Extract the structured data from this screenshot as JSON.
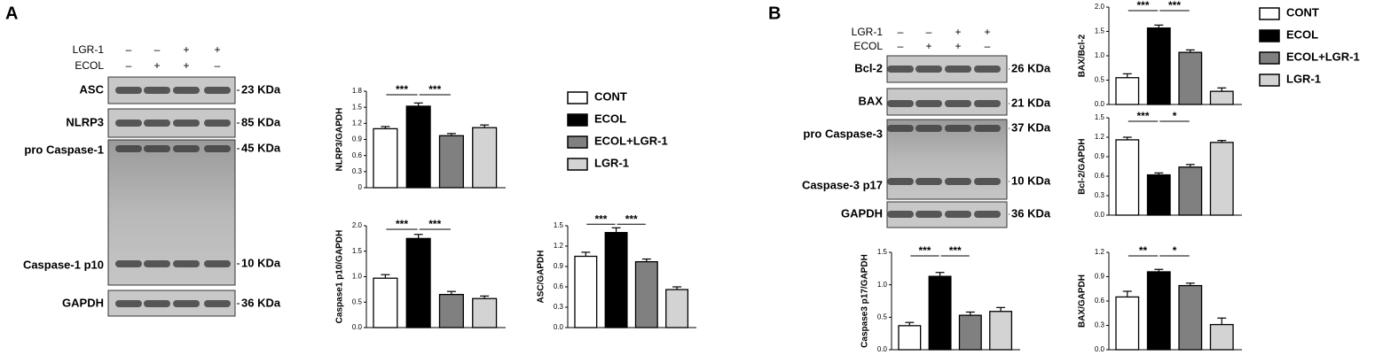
{
  "panels": [
    {
      "label": "A",
      "rows": [
        {
          "label": "LGR-1",
          "signs": [
            "–",
            "–",
            "+",
            "+"
          ]
        },
        {
          "label": "ECOL",
          "signs": [
            "–",
            "+",
            "+",
            "–"
          ]
        }
      ],
      "bands": [
        {
          "label": "ASC",
          "size": "23 KDa"
        },
        {
          "label": "NLRP3",
          "size": "85 KDa"
        },
        {
          "label": "pro Caspase-1",
          "size": "45 KDa"
        },
        {
          "label": "Caspase-1 p10",
          "size": "10 KDa"
        },
        {
          "label": "GAPDH",
          "size": "36 KDa"
        }
      ],
      "legend": [
        {
          "name": "CONT",
          "color": "#ffffff"
        },
        {
          "name": "ECOL",
          "color": "#000000"
        },
        {
          "name": "ECOL+LGR-1",
          "color": "#808080"
        },
        {
          "name": "LGR-1",
          "color": "#d3d3d3"
        }
      ]
    },
    {
      "label": "B",
      "rows": [
        {
          "label": "LGR-1",
          "signs": [
            "–",
            "–",
            "+",
            "+"
          ]
        },
        {
          "label": "ECOL",
          "signs": [
            "–",
            "+",
            "+",
            "–"
          ]
        }
      ],
      "bands": [
        {
          "label": "Bcl-2",
          "size": "26 KDa"
        },
        {
          "label": "BAX",
          "size": "21 KDa"
        },
        {
          "label": "pro Caspase-3",
          "size": "37 KDa"
        },
        {
          "label": "Caspase-3 p17",
          "size": "10 KDa"
        },
        {
          "label": "GAPDH",
          "size": "36 KDa"
        }
      ],
      "legend": [
        {
          "name": "CONT",
          "color": "#ffffff"
        },
        {
          "name": "ECOL",
          "color": "#000000"
        },
        {
          "name": "ECOL+LGR-1",
          "color": "#808080"
        },
        {
          "name": "LGR-1",
          "color": "#d3d3d3"
        }
      ]
    }
  ],
  "chart_data": [
    {
      "type": "bar",
      "ylabel": "NLRP3/GAPDH",
      "values": [
        1.1,
        1.52,
        0.97,
        1.12
      ],
      "errors": [
        0.04,
        0.06,
        0.04,
        0.05
      ],
      "colors": [
        "#ffffff",
        "#000000",
        "#808080",
        "#d3d3d3"
      ],
      "ylim": [
        0,
        1.8
      ],
      "yticks": [
        0,
        0.3,
        0.6,
        0.9,
        1.2,
        1.5,
        1.8
      ],
      "annotations": [
        "***",
        "***"
      ]
    },
    {
      "type": "bar",
      "ylabel": "Caspase1 p10/GAPDH",
      "values": [
        0.97,
        1.75,
        0.65,
        0.57
      ],
      "errors": [
        0.07,
        0.08,
        0.06,
        0.05
      ],
      "colors": [
        "#ffffff",
        "#000000",
        "#808080",
        "#d3d3d3"
      ],
      "ylim": [
        0,
        2.0
      ],
      "yticks": [
        {
          "value": 0,
          "label": "0.0"
        },
        0.5,
        {
          "value": 1,
          "label": "1.0"
        },
        1.5,
        {
          "value": 2,
          "label": "2.0"
        }
      ],
      "annotations": [
        "***",
        "***"
      ]
    },
    {
      "type": "bar",
      "ylabel": "ASC/GAPDH",
      "values": [
        1.05,
        1.4,
        0.97,
        0.56
      ],
      "errors": [
        0.06,
        0.07,
        0.04,
        0.04
      ],
      "colors": [
        "#ffffff",
        "#000000",
        "#808080",
        "#d3d3d3"
      ],
      "ylim": [
        0,
        1.5
      ],
      "yticks": [
        {
          "value": 0,
          "label": "0.0"
        },
        0.3,
        0.6,
        0.9,
        1.2,
        1.5
      ],
      "annotations": [
        "***",
        "***"
      ]
    },
    {
      "type": "bar",
      "ylabel": "BAX/Bcl-2",
      "values": [
        0.55,
        1.57,
        1.07,
        0.27
      ],
      "errors": [
        0.08,
        0.06,
        0.05,
        0.07
      ],
      "colors": [
        "#ffffff",
        "#000000",
        "#808080",
        "#d3d3d3"
      ],
      "ylim": [
        0,
        2.0
      ],
      "yticks": [
        {
          "value": 0,
          "label": "0.0"
        },
        0.5,
        {
          "value": 1,
          "label": "1.0"
        },
        1.5,
        {
          "value": 2,
          "label": "2.0"
        }
      ],
      "annotations": [
        "***",
        "***"
      ]
    },
    {
      "type": "bar",
      "ylabel": "Bcl-2/GAPDH",
      "values": [
        1.16,
        0.62,
        0.74,
        1.12
      ],
      "errors": [
        0.04,
        0.03,
        0.04,
        0.03
      ],
      "colors": [
        "#ffffff",
        "#000000",
        "#808080",
        "#d3d3d3"
      ],
      "ylim": [
        0,
        1.5
      ],
      "yticks": [
        {
          "value": 0,
          "label": "0.0"
        },
        0.3,
        0.6,
        0.9,
        1.2,
        1.5
      ],
      "annotations": [
        "***",
        "*"
      ]
    },
    {
      "type": "bar",
      "ylabel": "Caspase3 p17/GAPDH",
      "values": [
        0.37,
        1.13,
        0.53,
        0.59
      ],
      "errors": [
        0.05,
        0.06,
        0.05,
        0.06
      ],
      "colors": [
        "#ffffff",
        "#000000",
        "#808080",
        "#d3d3d3"
      ],
      "ylim": [
        0,
        1.5
      ],
      "yticks": [
        {
          "value": 0,
          "label": "0.0"
        },
        0.5,
        {
          "value": 1,
          "label": "1.0"
        },
        1.5
      ],
      "annotations": [
        "***",
        "***"
      ]
    },
    {
      "type": "bar",
      "ylabel": "BAX/GAPDH",
      "values": [
        0.65,
        0.96,
        0.79,
        0.31
      ],
      "errors": [
        0.07,
        0.03,
        0.03,
        0.08
      ],
      "colors": [
        "#ffffff",
        "#000000",
        "#808080",
        "#d3d3d3"
      ],
      "ylim": [
        0,
        1.2
      ],
      "yticks": [
        {
          "value": 0,
          "label": "0.0"
        },
        0.3,
        0.6,
        0.9,
        1.2
      ],
      "annotations": [
        "**",
        "*"
      ]
    }
  ]
}
